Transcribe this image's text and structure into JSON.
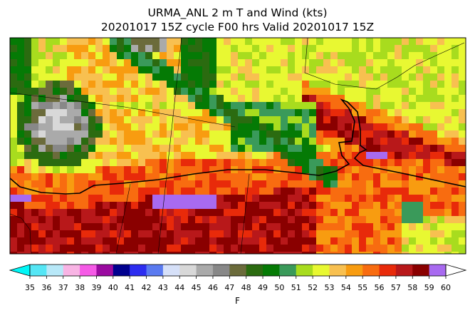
{
  "title": {
    "line1": "URMA_ANL 2 m T and Wind (kts)",
    "line2": "20201017 15Z cycle F00 hrs Valid 20201017 15Z"
  },
  "colorbar": {
    "units": "F",
    "ticks": [
      "35",
      "36",
      "37",
      "38",
      "39",
      "40",
      "41",
      "42",
      "43",
      "44",
      "45",
      "46",
      "47",
      "48",
      "49",
      "50",
      "51",
      "52",
      "53",
      "54",
      "55",
      "56",
      "57",
      "58",
      "59",
      "60"
    ],
    "below_color": "#00f7f7",
    "above_color": "#ffffff",
    "bin_colors": [
      "#55e6f5",
      "#b8e8f8",
      "#f8b4e4",
      "#f55ae6",
      "#9a0aa0",
      "#00008e",
      "#2d2df0",
      "#5a7af0",
      "#d6e0f8",
      "#d8d8d8",
      "#aaaaaa",
      "#888888",
      "#6b6b3b",
      "#2b6b10",
      "#057a05",
      "#3a9a5a",
      "#a8dc1e",
      "#e8f832",
      "#f8c050",
      "#f89c10",
      "#f86c10",
      "#e82a0a",
      "#b8181a",
      "#8a0000",
      "#a86af0"
    ]
  }
}
